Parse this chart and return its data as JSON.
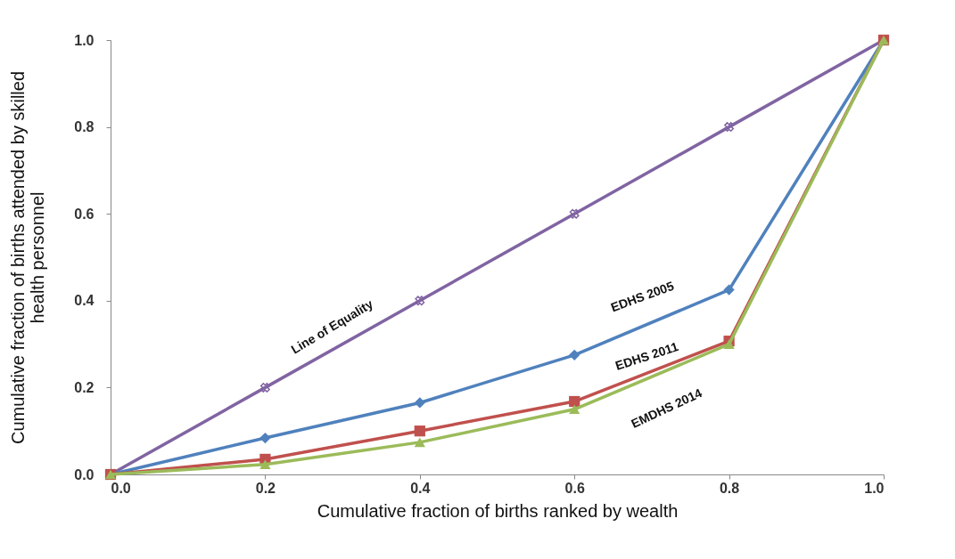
{
  "chart_data": {
    "type": "line",
    "xlabel": "Cumulative fraction of births ranked by wealth",
    "ylabel": "Cumulative fraction of births attended by skilled health personnel",
    "x": [
      0,
      0.2,
      0.4,
      0.6,
      0.8,
      1.0
    ],
    "series": [
      {
        "name": "Line of Equality",
        "color": "#8064a2",
        "marker": "cross",
        "values": [
          0,
          0.2,
          0.4,
          0.6,
          0.8,
          1.0
        ]
      },
      {
        "name": "EDHS 2005",
        "color": "#4f81bd",
        "marker": "diamond",
        "values": [
          0,
          0.084,
          0.165,
          0.275,
          0.425,
          1.0
        ]
      },
      {
        "name": "EDHS 2011",
        "color": "#c0504d",
        "marker": "square",
        "values": [
          0,
          0.035,
          0.1,
          0.168,
          0.307,
          1.0
        ]
      },
      {
        "name": "EMDHS 2014",
        "color": "#9bbb59",
        "marker": "triangle",
        "values": [
          0,
          0.023,
          0.074,
          0.15,
          0.3,
          1.0
        ]
      }
    ],
    "xlim": [
      0,
      1.0
    ],
    "xticks": [
      {
        "value": 0,
        "label": "0.0"
      },
      0.2,
      0.4,
      0.6,
      0.8,
      {
        "value": 1,
        "label": "1.0"
      }
    ],
    "ylim": [
      0,
      1.0
    ],
    "yticks": [
      {
        "value": 0,
        "label": "0.0"
      },
      0.2,
      0.4,
      0.6,
      0.8,
      {
        "value": 1,
        "label": "1.0"
      }
    ],
    "grid": false,
    "legend": false,
    "line_style": "solid"
  }
}
